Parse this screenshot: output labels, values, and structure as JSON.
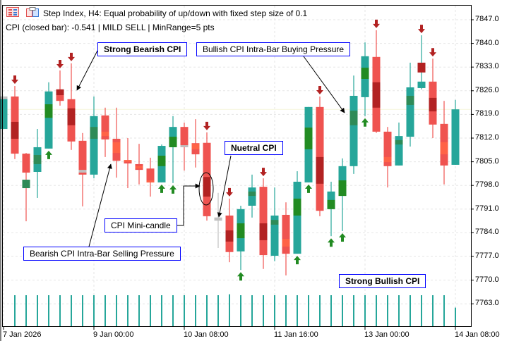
{
  "header": {
    "title": "Step Index, H4:  Equal probability of up/down with fixed step size of 0.1",
    "status": "CPI (closed bar): -0.541 | MILD SELL | MinRange=5 pts"
  },
  "annotations": {
    "strong_bearish": "Strong Bearish CPI",
    "bullish_intrabar": "Bullish CPI Intra-Bar Buying Pressure",
    "neutral": "Nuetral CPI",
    "mini_candle": "CPI Mini-candle",
    "bearish_intrabar": "Bearish CPI Intra-Bar Selling Pressure",
    "strong_bullish": "Strong Bullish CPI"
  },
  "colors": {
    "bull": "#26a69a",
    "bear": "#ef5350",
    "dark_red": "#b22222",
    "green": "#228b22",
    "sea_green": "#2e8b57",
    "orange": "#ff6347",
    "gray": "#c0c0c0",
    "annotation_border": "#0000ff"
  },
  "chart_data": {
    "type": "candlestick",
    "symbol": "Step Index",
    "timeframe": "H4",
    "ylim": [
      7760.0,
      7849.0
    ],
    "y_ticks": [
      "7847.0",
      "7840.0",
      "7833.0",
      "7826.0",
      "7819.0",
      "7812.0",
      "7805.0",
      "7798.0",
      "7791.0",
      "7784.0",
      "7777.0",
      "7770.0",
      "7763.0"
    ],
    "x_ticks": [
      {
        "label": "7 Jan 2026",
        "bar": 0
      },
      {
        "label": "9 Jan 00:00",
        "bar": 8
      },
      {
        "label": "10 Jan 08:00",
        "bar": 16
      },
      {
        "label": "11 Jan 16:00",
        "bar": 24
      },
      {
        "label": "13 Jan 00:00",
        "bar": 32
      },
      {
        "label": "14 Jan 08:00",
        "bar": 40
      }
    ],
    "last_price": 7820.5,
    "candles": [
      {
        "o": 7814.7,
        "h": 7824.3,
        "l": 7814.7,
        "c": 7824.3,
        "cpi": [
          7824.3,
          7823.5
        ],
        "cc": "gray",
        "arrow": null
      },
      {
        "o": 7824.3,
        "h": 7827.4,
        "l": 7805.8,
        "c": 7807.4,
        "cpi": [
          7816.8,
          7811.8
        ],
        "cc": "dark_red",
        "arrow": "down"
      },
      {
        "o": 7807.4,
        "h": 7807.6,
        "l": 7787.4,
        "c": 7801.8,
        "cpi": [
          7799.7,
          7797.2
        ],
        "cc": "sea_green",
        "arrow": null
      },
      {
        "o": 7802.0,
        "h": 7814.7,
        "l": 7794.3,
        "c": 7809.3,
        "cpi": [
          7807.0,
          7804.3
        ],
        "cc": "sea_green",
        "arrow": null
      },
      {
        "o": 7808.9,
        "h": 7828.5,
        "l": 7808.9,
        "c": 7825.8,
        "cpi": [
          7822.0,
          7818.0
        ],
        "cc": "green",
        "arrow": "up"
      },
      {
        "o": 7826.4,
        "h": 7832.0,
        "l": 7821.6,
        "c": 7823.0,
        "cpi": [
          7826.4,
          7824.7
        ],
        "cc": "dark_red",
        "arrow": "down"
      },
      {
        "o": 7823.5,
        "h": 7834.1,
        "l": 7808.5,
        "c": 7811.0,
        "cpi": [
          7820.8,
          7815.8
        ],
        "cc": "dark_red",
        "arrow": "down"
      },
      {
        "o": 7811.2,
        "h": 7813.5,
        "l": 7791.8,
        "c": 7801.2,
        "cpi": [
          7802.6,
          7801.8
        ],
        "cc": "gray",
        "arrow": null
      },
      {
        "o": 7801.2,
        "h": 7824.3,
        "l": 7800.1,
        "c": 7818.5,
        "cpi": [
          7815.3,
          7811.8
        ],
        "cc": "sea_green",
        "arrow": null
      },
      {
        "o": 7818.7,
        "h": 7821.0,
        "l": 7806.4,
        "c": 7811.6,
        "cpi": [
          7813.9,
          7812.6
        ],
        "cc": "orange",
        "arrow": null
      },
      {
        "o": 7811.8,
        "h": 7821.0,
        "l": 7800.3,
        "c": 7805.3,
        "cpi": [
          7810.8,
          7807.6
        ],
        "cc": "orange",
        "arrow": null
      },
      {
        "o": 7805.5,
        "h": 7812.0,
        "l": 7797.2,
        "c": 7804.5,
        "cpi": [
          7805.5,
          7805.0
        ],
        "cc": "orange",
        "arrow": null
      },
      {
        "o": 7804.3,
        "h": 7810.3,
        "l": 7798.3,
        "c": 7802.6,
        "cpi": [
          7803.7,
          7803.0
        ],
        "cc": "orange",
        "arrow": null
      },
      {
        "o": 7803.0,
        "h": 7806.2,
        "l": 7794.7,
        "c": 7798.9,
        "cpi": [
          7799.5,
          7798.9
        ],
        "cc": "orange",
        "arrow": null
      },
      {
        "o": 7798.9,
        "h": 7810.1,
        "l": 7798.9,
        "c": 7809.7,
        "cpi": [
          7806.8,
          7803.7
        ],
        "cc": "green",
        "arrow": "up"
      },
      {
        "o": 7809.3,
        "h": 7818.5,
        "l": 7798.7,
        "c": 7815.3,
        "cpi": [
          7812.4,
          7809.3
        ],
        "cc": "green",
        "arrow": "up"
      },
      {
        "o": 7815.3,
        "h": 7816.6,
        "l": 7802.4,
        "c": 7809.3,
        "cpi": [
          7809.9,
          7809.3
        ],
        "cc": "gray",
        "arrow": null
      },
      {
        "o": 7810.5,
        "h": 7817.6,
        "l": 7803.3,
        "c": 7807.2,
        "cpi": [
          7810.3,
          7808.7
        ],
        "cc": "orange",
        "arrow": null
      },
      {
        "o": 7810.6,
        "h": 7813.7,
        "l": 7787.6,
        "c": 7788.9,
        "cpi": [
          7800.5,
          7794.7
        ],
        "cc": "dark_red",
        "arrow": "down"
      },
      {
        "o": 7788.5,
        "h": 7795.8,
        "l": 7779.5,
        "c": 7787.6,
        "cpi": [
          7788.5,
          7787.6
        ],
        "cc": "gray",
        "arrow": null
      },
      {
        "o": 7789.1,
        "h": 7794.1,
        "l": 7775.3,
        "c": 7778.3,
        "cpi": [
          7784.7,
          7781.4
        ],
        "cc": "dark_red",
        "arrow": "down"
      },
      {
        "o": 7778.5,
        "h": 7792.0,
        "l": 7773.0,
        "c": 7791.0,
        "cpi": [
          7786.8,
          7782.4
        ],
        "cc": "green",
        "arrow": "up"
      },
      {
        "o": 7792.0,
        "h": 7801.2,
        "l": 7788.5,
        "c": 7797.4,
        "cpi": [
          7796.2,
          7794.9
        ],
        "cc": "sea_green",
        "arrow": null
      },
      {
        "o": 7797.6,
        "h": 7800.1,
        "l": 7773.3,
        "c": 7777.4,
        "cpi": [
          7786.8,
          7781.8
        ],
        "cc": "dark_red",
        "arrow": "down"
      },
      {
        "o": 7777.2,
        "h": 7797.4,
        "l": 7775.6,
        "c": 7789.1,
        "cpi": [
          7787.8,
          7786.4
        ],
        "cc": "sea_green",
        "arrow": null
      },
      {
        "o": 7789.3,
        "h": 7793.0,
        "l": 7771.4,
        "c": 7777.8,
        "cpi": [
          7782.2,
          7779.9
        ],
        "cc": "orange",
        "arrow": null
      },
      {
        "o": 7777.8,
        "h": 7802.2,
        "l": 7777.8,
        "c": 7799.1,
        "cpi": [
          7794.1,
          7789.1
        ],
        "cc": "green",
        "arrow": "up"
      },
      {
        "o": 7798.9,
        "h": 7821.2,
        "l": 7798.9,
        "c": 7821.2,
        "cpi": [
          7815.1,
          7808.7
        ],
        "cc": "green",
        "arrow": "up"
      },
      {
        "o": 7821.2,
        "h": 7824.3,
        "l": 7788.9,
        "c": 7790.5,
        "cpi": [
          7806.4,
          7798.5
        ],
        "cc": "dark_red",
        "arrow": "down"
      },
      {
        "o": 7791.0,
        "h": 7799.1,
        "l": 7783.0,
        "c": 7796.2,
        "cpi": [
          7793.7,
          7791.0
        ],
        "cc": "green",
        "arrow": "up"
      },
      {
        "o": 7794.9,
        "h": 7806.0,
        "l": 7784.5,
        "c": 7803.7,
        "cpi": [
          7799.5,
          7794.9
        ],
        "cc": "green",
        "arrow": "up"
      },
      {
        "o": 7803.7,
        "h": 7830.5,
        "l": 7801.4,
        "c": 7824.5,
        "cpi": [
          7820.1,
          7815.8
        ],
        "cc": "sea_green",
        "arrow": null
      },
      {
        "o": 7824.1,
        "h": 7840.3,
        "l": 7818.5,
        "c": 7836.2,
        "cpi": [
          7832.8,
          7829.5
        ],
        "cc": "green",
        "arrow": "up"
      },
      {
        "o": 7836.0,
        "h": 7843.9,
        "l": 7813.5,
        "c": 7813.9,
        "cpi": [
          7828.5,
          7821.0
        ],
        "cc": "dark_red",
        "arrow": "down"
      },
      {
        "o": 7813.9,
        "h": 7815.3,
        "l": 7797.4,
        "c": 7803.7,
        "cpi": [
          7806.4,
          7804.9
        ],
        "cc": "orange",
        "arrow": null
      },
      {
        "o": 7803.9,
        "h": 7816.6,
        "l": 7803.9,
        "c": 7812.6,
        "cpi": [
          7811.4,
          7810.1
        ],
        "cc": "sea_green",
        "arrow": null
      },
      {
        "o": 7812.4,
        "h": 7834.3,
        "l": 7809.5,
        "c": 7827.0,
        "cpi": [
          7824.5,
          7821.8
        ],
        "cc": "sea_green",
        "arrow": null
      },
      {
        "o": 7826.8,
        "h": 7842.4,
        "l": 7826.4,
        "c": 7828.7,
        "cpi": [
          7834.3,
          7831.4
        ],
        "cc": "dark_red",
        "arrow": "down"
      },
      {
        "o": 7828.7,
        "h": 7835.5,
        "l": 7812.0,
        "c": 7816.0,
        "cpi": [
          7823.9,
          7819.9
        ],
        "cc": "dark_red",
        "arrow": "down"
      },
      {
        "o": 7816.2,
        "h": 7823.0,
        "l": 7798.3,
        "c": 7803.9,
        "cpi": [
          7810.8,
          7807.2
        ],
        "cc": "orange",
        "arrow": null
      },
      {
        "o": 7804.1,
        "h": 7823.3,
        "l": 7804.1,
        "c": 7820.5,
        "cpi": null,
        "cc": null,
        "arrow": null
      }
    ],
    "volume_relative": [
      null,
      1,
      1,
      1,
      1,
      1,
      1,
      1,
      1,
      1,
      1,
      1,
      1,
      1,
      1,
      1,
      1,
      1,
      1,
      1,
      1.03,
      1,
      1,
      1,
      1,
      1,
      1,
      1,
      1,
      1,
      1,
      1,
      1,
      1,
      1,
      1,
      1,
      1,
      1,
      1,
      0.6
    ]
  }
}
